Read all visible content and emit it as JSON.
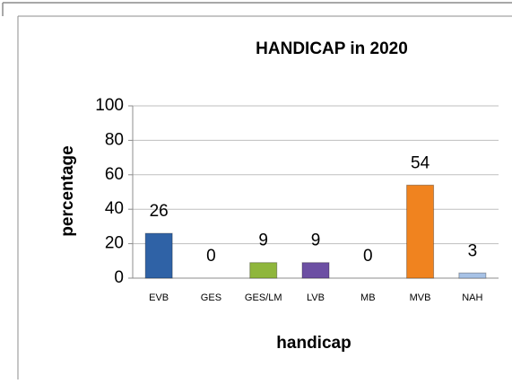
{
  "chart_data": {
    "type": "bar",
    "title": "HANDICAP in 2020",
    "x_label": "handicap",
    "y_label": "percentage",
    "categories": [
      "EVB",
      "GES",
      "GES/LM",
      "LVB",
      "MB",
      "MVB",
      "NAH"
    ],
    "values": [
      26,
      0,
      9,
      9,
      0,
      54,
      3
    ],
    "colors": [
      "#2f62a6",
      "#c0504d",
      "#8fb63c",
      "#6c4fa3",
      "#4bacc6",
      "#f0831f",
      "#a7c2e6"
    ],
    "ylim": [
      0,
      100
    ],
    "yticks": [
      0,
      20,
      40,
      60,
      80,
      100
    ],
    "grid": true
  }
}
